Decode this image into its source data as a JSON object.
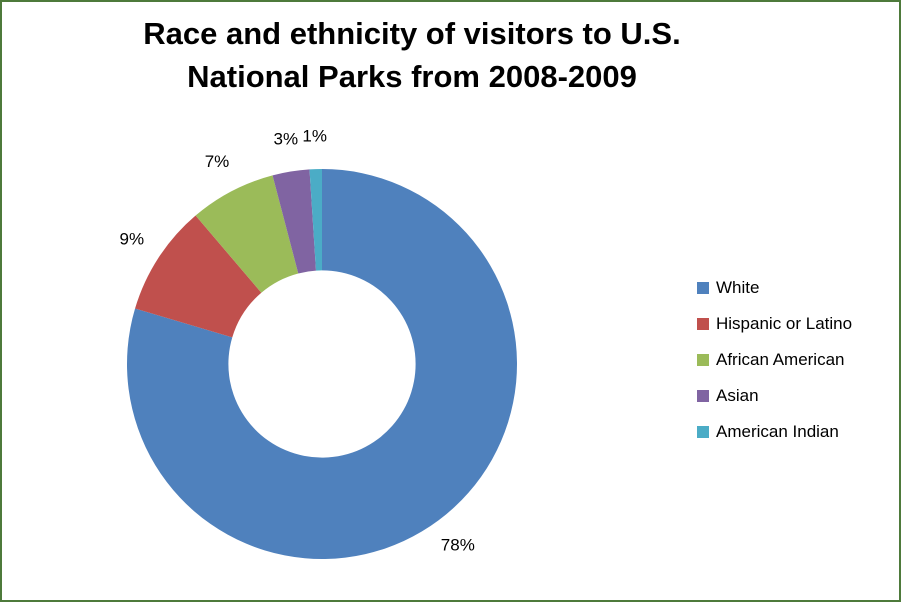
{
  "title": {
    "line1": "Race and ethnicity of visitors to U.S.",
    "line2": "National Parks from 2008-2009"
  },
  "frame": {
    "border_color": "#4E7A3B",
    "background": "#FFFFFF"
  },
  "chart_data": {
    "type": "pie",
    "subtype": "donut",
    "title": "Race and ethnicity of visitors to U.S. National Parks from 2008-2009",
    "categories": [
      "White",
      "Hispanic or Latino",
      "African American",
      "Asian",
      "American Indian"
    ],
    "values": [
      78,
      9,
      7,
      3,
      1
    ],
    "labels": [
      "78%",
      "9%",
      "7%",
      "3%",
      "1%"
    ],
    "colors": [
      "#4F81BD",
      "#C0504D",
      "#9BBB59",
      "#8064A2",
      "#4BACC6"
    ],
    "legend_position": "right",
    "start_angle_deg": 0,
    "direction": "clockwise",
    "inner_radius_ratio": 0.48,
    "grid": false
  }
}
